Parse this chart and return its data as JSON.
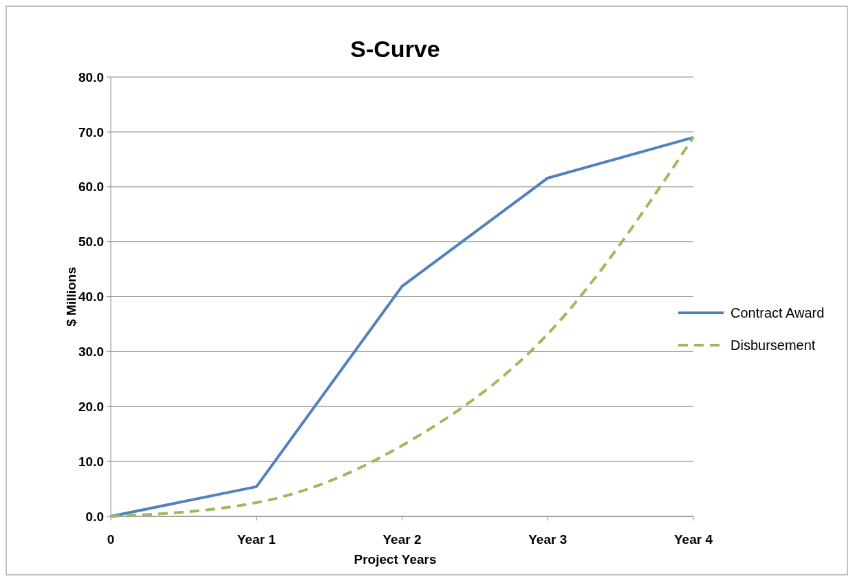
{
  "chart_data": {
    "type": "line",
    "title": "S-Curve",
    "xlabel": "Project Years",
    "ylabel": "$ Millions",
    "categories": [
      "0",
      "Year 1",
      "Year 2",
      "Year 3",
      "Year 4"
    ],
    "series": [
      {
        "name": "Contract Award",
        "color": "#4f81bd",
        "values": [
          0,
          5.4,
          41.9,
          61.6,
          69.0
        ],
        "line_style": "solid"
      },
      {
        "name": "Disbursement",
        "color": "#9bbb59",
        "values": [
          0,
          2.5,
          12.9,
          33.2,
          69.0
        ],
        "line_style": "dashed"
      }
    ],
    "ylim": [
      0,
      80
    ],
    "yticks": [
      {
        "value": 0,
        "label": "0.0"
      },
      {
        "value": 10,
        "label": "10.0"
      },
      {
        "value": 20,
        "label": "20.0"
      },
      {
        "value": 30,
        "label": "30.0"
      },
      {
        "value": 40,
        "label": "40.0"
      },
      {
        "value": 50,
        "label": "50.0"
      },
      {
        "value": 60,
        "label": "60.0"
      },
      {
        "value": 70,
        "label": "70.0"
      },
      {
        "value": 80,
        "label": "80.0"
      }
    ],
    "grid": "y",
    "legend": "right",
    "marker": "none"
  }
}
